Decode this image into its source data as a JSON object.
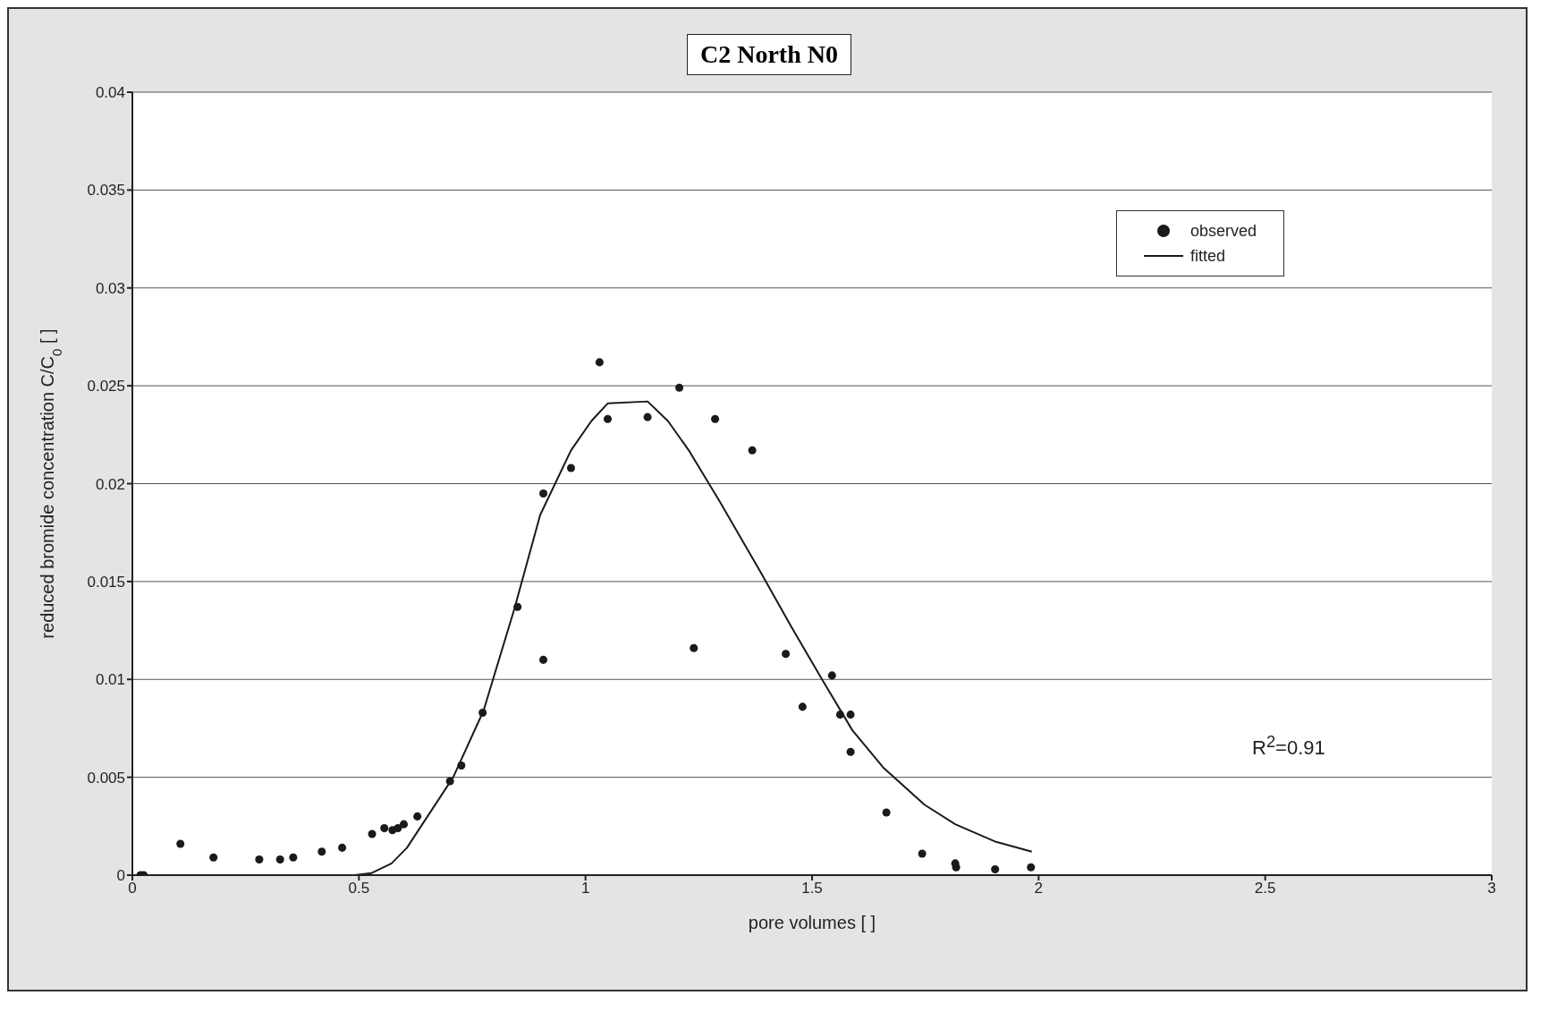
{
  "chart_data": {
    "type": "scatter",
    "title": "C2 North N0",
    "xlabel": "pore volumes [  ]",
    "ylabel": "reduced bromide concentration C/C$_{0}$ [ ]",
    "xlim": [
      0,
      3
    ],
    "xticks": [
      0,
      0.5,
      1,
      1.5,
      2,
      2.5,
      3
    ],
    "ylim": [
      0,
      0.04
    ],
    "yticks": [
      0,
      0.005,
      0.01,
      0.015,
      0.02,
      0.025,
      0.03,
      0.035,
      0.04
    ],
    "grid": "y",
    "legend": "top right",
    "annotations": [
      "R$^{2}$=0.91"
    ],
    "series": [
      {
        "name": "observed",
        "color": "#1a1a1a",
        "marker": "circle",
        "x": [
          0.018,
          0.025,
          0.106,
          0.179,
          0.28,
          0.326,
          0.355,
          0.418,
          0.463,
          0.529,
          0.556,
          0.574,
          0.586,
          0.599,
          0.629,
          0.701,
          0.726,
          0.773,
          0.85,
          0.907,
          0.907,
          0.968,
          1.031,
          1.049,
          1.137,
          1.207,
          1.239,
          1.286,
          1.368,
          1.442,
          1.479,
          1.544,
          1.562,
          1.585,
          1.585,
          1.664,
          1.743,
          1.816,
          1.818,
          1.904,
          1.983
        ],
        "values": [
          0,
          0,
          0.0016,
          0.0009,
          0.0008,
          0.0008,
          0.0009,
          0.0012,
          0.0014,
          0.0021,
          0.0024,
          0.0023,
          0.0024,
          0.0026,
          0.003,
          0.0048,
          0.0056,
          0.0083,
          0.0137,
          0.0195,
          0.011,
          0.0208,
          0.0262,
          0.0233,
          0.0234,
          0.0249,
          0.0116,
          0.0233,
          0.0217,
          0.0113,
          0.0086,
          0.0102,
          0.0082,
          0.0082,
          0.0063,
          0.0032,
          0.0011,
          0.0006,
          0.0004,
          0.0003,
          0.0004
        ]
      },
      {
        "name": "fitted",
        "type": "line",
        "color": "#1a1a1a",
        "marker": "none",
        "line_style": "solid",
        "x": [
          0,
          0.49,
          0.527,
          0.572,
          0.606,
          0.64,
          0.708,
          0.775,
          0.843,
          0.9,
          0.968,
          1.013,
          1.049,
          1.137,
          1.182,
          1.228,
          1.296,
          1.386,
          1.454,
          1.522,
          1.589,
          1.657,
          1.748,
          1.816,
          1.906,
          1.985
        ],
        "values": [
          0,
          0,
          0.0001,
          0.0006,
          0.0014,
          0.0026,
          0.005,
          0.0084,
          0.0136,
          0.0184,
          0.0217,
          0.0232,
          0.0241,
          0.0242,
          0.0232,
          0.0217,
          0.0191,
          0.0155,
          0.0127,
          0.01,
          0.0074,
          0.0055,
          0.0036,
          0.0026,
          0.0017,
          0.0012
        ]
      }
    ]
  }
}
